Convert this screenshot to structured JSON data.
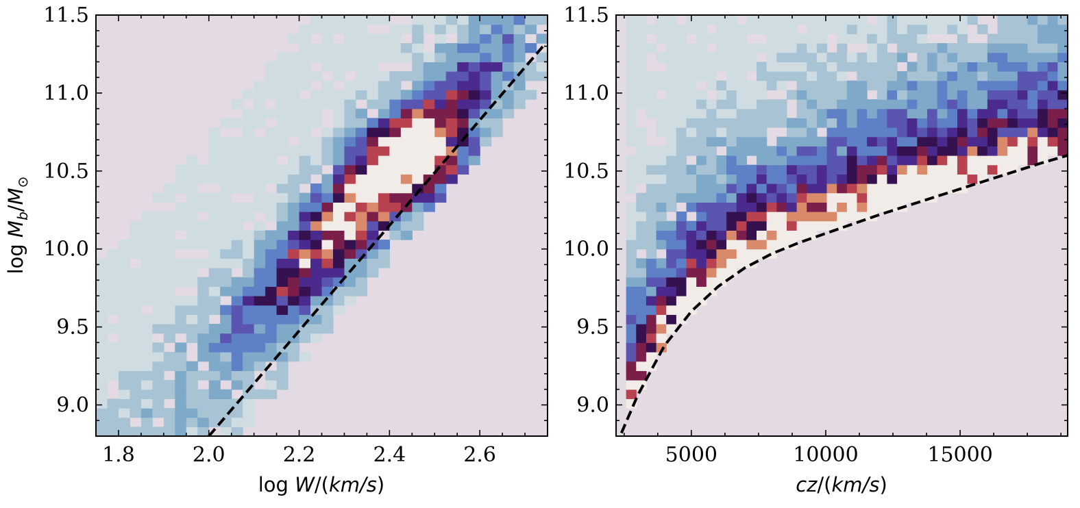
{
  "colors": {
    "background_bin": "#e4dae3",
    "frame": "#000000",
    "fit_line": "#000000",
    "colormap": [
      "#e4dae3",
      "#cfdce2",
      "#a8c4d4",
      "#7ea9c9",
      "#5d80c6",
      "#5a55b0",
      "#4b2a8e",
      "#35124f",
      "#7a1f4a",
      "#b8424f",
      "#d98a6a",
      "#f2ece8"
    ]
  },
  "chart_data": [
    {
      "type": "heatmap",
      "title": "",
      "xlabel": "log W/(km/s)",
      "ylabel": "log M_b/M_⊙",
      "xlim": [
        1.75,
        2.75
      ],
      "ylim": [
        8.8,
        11.5
      ],
      "xticks": [
        1.8,
        2.0,
        2.2,
        2.4,
        2.6
      ],
      "xtick_labels": [
        "1.8",
        "2.0",
        "2.2",
        "2.4",
        "2.6"
      ],
      "yticks": [
        9.0,
        9.5,
        10.0,
        10.5,
        11.0,
        11.5
      ],
      "ytick_labels": [
        "9.0",
        "9.5",
        "10.0",
        "10.5",
        "11.0",
        "11.5"
      ],
      "grid": false,
      "nx": 40,
      "ny": 45,
      "density_ridge": {
        "description": "counts concentrated along a Tully-Fisher ridge",
        "peak": [
          2.46,
          10.55
        ]
      },
      "fit_line": {
        "style": "dashed",
        "points": [
          [
            2.0,
            8.8
          ],
          [
            2.74,
            11.3
          ]
        ]
      }
    },
    {
      "type": "heatmap",
      "title": "",
      "xlabel": "cz/(km/s)",
      "ylabel": "",
      "xlim": [
        2200,
        19000
      ],
      "ylim": [
        8.8,
        11.5
      ],
      "xticks": [
        5000,
        10000,
        15000
      ],
      "xtick_labels": [
        "5000",
        "10000",
        "15000"
      ],
      "yticks": [
        9.0,
        9.5,
        10.0,
        10.5,
        11.0,
        11.5
      ],
      "ytick_labels": [
        "9.0",
        "9.5",
        "10.0",
        "10.5",
        "11.0",
        "11.5"
      ],
      "grid": false,
      "nx": 45,
      "ny": 45,
      "density_ridge": {
        "description": "counts concentrated just above a mass selection limit",
        "peak": [
          10000,
          10.15
        ]
      },
      "fit_line": {
        "style": "dashed",
        "points": [
          [
            2400,
            8.82
          ],
          [
            3000,
            9.06
          ],
          [
            4000,
            9.38
          ],
          [
            5000,
            9.6
          ],
          [
            6000,
            9.76
          ],
          [
            7000,
            9.88
          ],
          [
            8000,
            9.97
          ],
          [
            9000,
            10.04
          ],
          [
            10000,
            10.1
          ],
          [
            12000,
            10.22
          ],
          [
            14000,
            10.33
          ],
          [
            16000,
            10.44
          ],
          [
            18000,
            10.55
          ],
          [
            19000,
            10.6
          ]
        ]
      }
    }
  ]
}
